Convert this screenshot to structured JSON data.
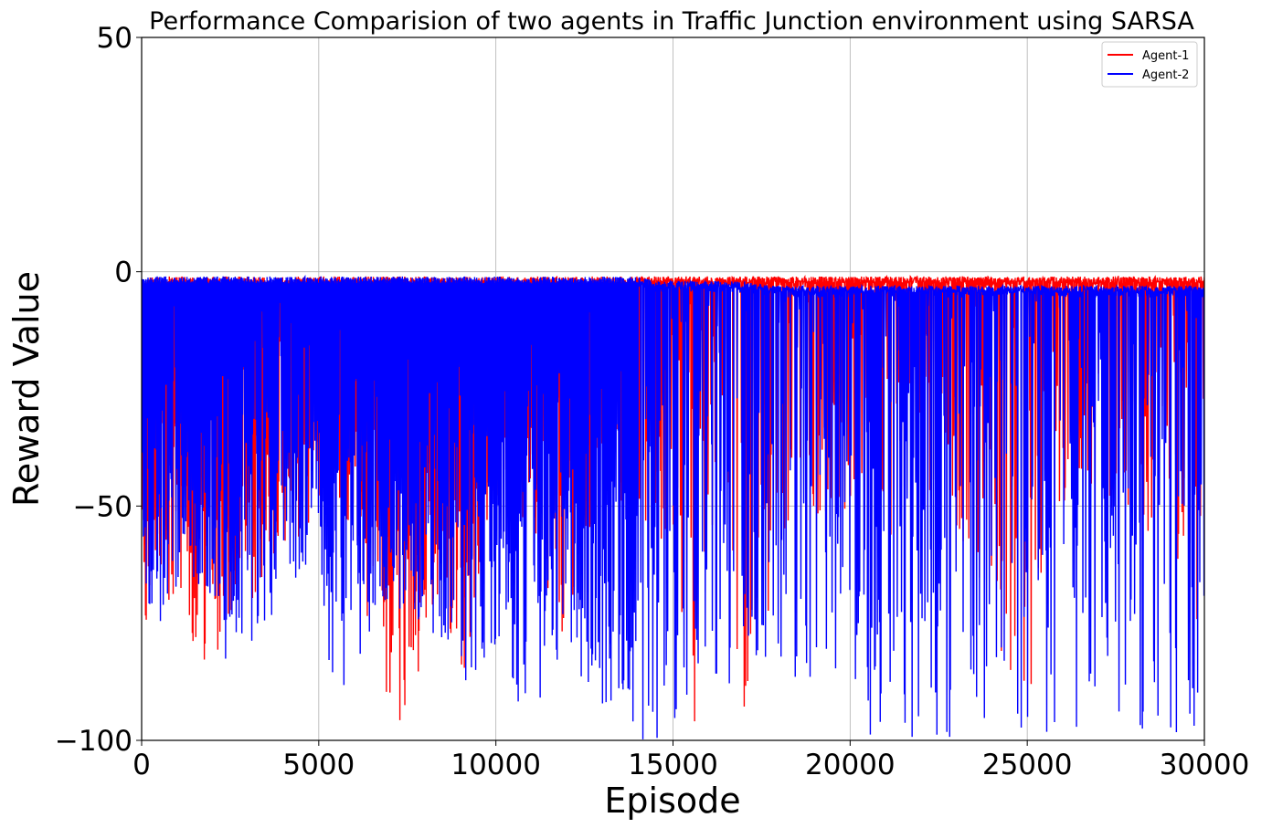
{
  "chart_data": {
    "type": "line",
    "title": "Performance Comparision of two agents in Traffic Junction environment using SARSA",
    "xlabel": "Episode",
    "ylabel": "Reward Value",
    "xlim": [
      0,
      30000
    ],
    "ylim": [
      -100,
      50
    ],
    "xticks": [
      "0",
      "5000",
      "10000",
      "15000",
      "20000",
      "25000",
      "30000"
    ],
    "yticks": [
      "50",
      "0",
      "−50",
      "−100"
    ],
    "grid": true,
    "legend_position": "top-right",
    "series": [
      {
        "name": "Agent-1",
        "color": "#ff0000",
        "x": [
          0,
          300,
          700,
          1000,
          1800,
          2500,
          3500,
          4200,
          5000,
          6000,
          6600,
          7500,
          8500,
          9000,
          10000,
          11000,
          12100,
          12500,
          13500,
          14000,
          15000,
          15600,
          16000,
          17200,
          18000,
          20000,
          21600,
          22700,
          23200,
          25000,
          25500,
          27500,
          28100,
          29000,
          29900
        ],
        "envelope_min": [
          -82,
          -65,
          -70,
          -70,
          -87,
          -75,
          -67,
          -60,
          -50,
          -55,
          -89,
          -100,
          -70,
          -89,
          -50,
          -55,
          -86,
          -60,
          -50,
          -55,
          -60,
          -100,
          -60,
          -100,
          -60,
          -50,
          -68,
          -47,
          -63,
          -100,
          -55,
          -50,
          -61,
          -55,
          -78
        ],
        "typical_max": [
          -2,
          -1,
          -1,
          -1,
          -1,
          -1,
          -1,
          -1,
          -1,
          -1,
          -1,
          -1,
          -1,
          -1,
          -1,
          -1,
          -1,
          -1,
          -1,
          -1,
          -1,
          -1,
          -1,
          -1,
          -1,
          -1,
          -1,
          -1,
          -1,
          -1,
          -1,
          -1,
          -1,
          -1,
          -1
        ]
      },
      {
        "name": "Agent-2",
        "color": "#0000ff",
        "x": [
          0,
          300,
          700,
          1000,
          1800,
          2500,
          3500,
          4200,
          5000,
          5400,
          6000,
          7000,
          8000,
          9000,
          10000,
          10900,
          12000,
          12900,
          13500,
          14000,
          14500,
          15000,
          16000,
          17000,
          18000,
          19000,
          20000,
          21000,
          22000,
          23000,
          24000,
          25000,
          26000,
          27000,
          28000,
          29000,
          30000
        ],
        "envelope_min": [
          -60,
          -79,
          -74,
          -70,
          -68,
          -88,
          -75,
          -68,
          -60,
          -97,
          -88,
          -72,
          -75,
          -89,
          -80,
          -99,
          -80,
          -100,
          -90,
          -100,
          -100,
          -98,
          -92,
          -85,
          -95,
          -100,
          -100,
          -98,
          -100,
          -100,
          -100,
          -100,
          -100,
          -98,
          -100,
          -100,
          -100
        ],
        "typical_max": [
          -1,
          -1,
          -1,
          -1,
          -1,
          -1,
          -1,
          -1,
          -1,
          -1,
          -1,
          -1,
          -1,
          -1,
          -1,
          -1,
          -1,
          -1,
          -1,
          -1,
          -2,
          -2,
          -2,
          -2,
          -3,
          -3,
          -3,
          -3,
          -3,
          -3,
          -3,
          -3,
          -3,
          -3,
          -3,
          -3,
          -3
        ]
      }
    ]
  }
}
